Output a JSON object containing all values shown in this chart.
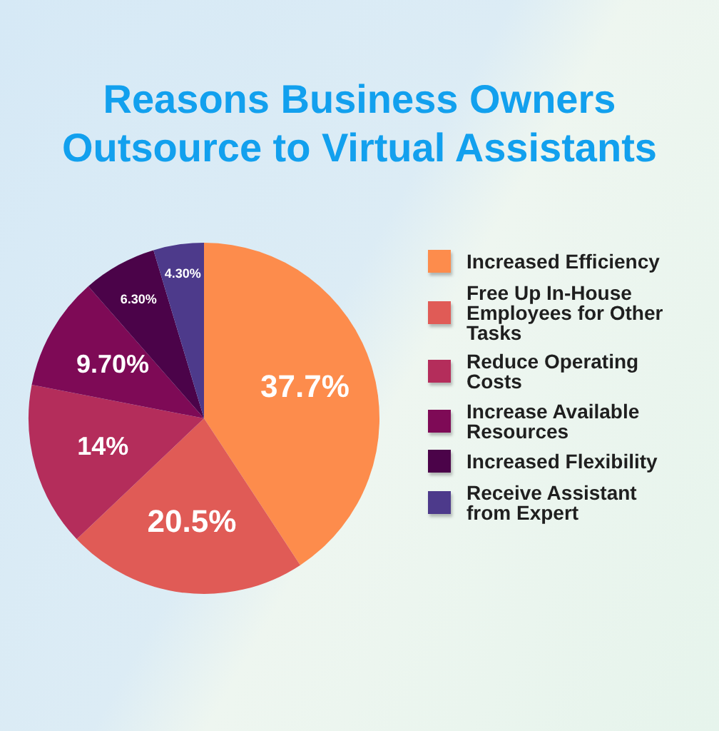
{
  "chart_data": {
    "type": "pie",
    "title": "Reasons Business Owners Outsource to Virtual Assistants",
    "categories": [
      "Increased Efficiency",
      "Free Up In-House Employees for Other Tasks",
      "Reduce Operating Costs",
      "Increase Available Resources",
      "Increased Flexibility",
      "Receive Assistant from Expert"
    ],
    "values": [
      37.7,
      20.5,
      14,
      9.7,
      6.3,
      4.3
    ],
    "colors": [
      "#fd8c4c",
      "#e05b56",
      "#b42d5b",
      "#7e0a56",
      "#4b0349",
      "#4d3a8b"
    ],
    "value_labels": [
      "37.7%",
      "20.5%",
      "14%",
      "9.70%",
      "6.30%",
      "4.30%"
    ],
    "legend": "right"
  }
}
